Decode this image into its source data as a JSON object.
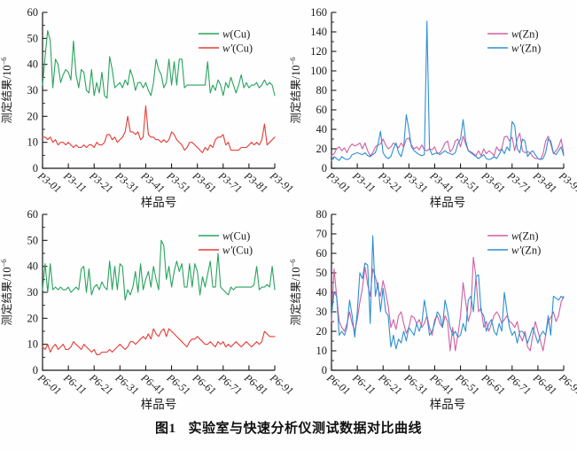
{
  "figure": {
    "caption_prefix": "图1",
    "caption_text": "实验室与快速分析仪测试数据对比曲线"
  },
  "colors": {
    "green": "#29a35e",
    "red": "#e73b34",
    "pink": "#d05fa2",
    "blue": "#2e8fd4",
    "axis": "#1a1a1a"
  },
  "chart_data": [
    {
      "id": "cu-p3",
      "type": "line",
      "title": "",
      "xlabel": "样品号",
      "ylabel_base": "测定结果/10",
      "ylabel_sup": "−6",
      "ylim": [
        0,
        60
      ],
      "ytick_step": 10,
      "grid": false,
      "legend_position": "upper right",
      "x_tick_labels": [
        "P3-01",
        "P3-11",
        "P3-21",
        "P3-31",
        "P3-41",
        "P3-51",
        "P3-61",
        "P3-71",
        "P3-81",
        "P3-91"
      ],
      "legend": [
        {
          "var": "w",
          "rest": "(Cu)",
          "color": "#29a35e"
        },
        {
          "var": "w′",
          "rest": "(Cu)",
          "color": "#e73b34"
        }
      ],
      "series": [
        {
          "name": "w(Cu)",
          "color": "#29a35e",
          "values": [
            32,
            43,
            53,
            49,
            31,
            42,
            40,
            33,
            36,
            38,
            37,
            34,
            49,
            36,
            31,
            38,
            37,
            30,
            29,
            38,
            28,
            33,
            29,
            37,
            28,
            27,
            43,
            38,
            31,
            32,
            33,
            31,
            34,
            32,
            38,
            35,
            30,
            33,
            33,
            31,
            33,
            30,
            28,
            33,
            42,
            38,
            36,
            31,
            33,
            42,
            32,
            41,
            32,
            42,
            42,
            31,
            32,
            32,
            32,
            32,
            32,
            32,
            32,
            32,
            41,
            29,
            32,
            30,
            34,
            32,
            28,
            33,
            31,
            35,
            32,
            29,
            32,
            36,
            31,
            33,
            31,
            32,
            32,
            33,
            31,
            32,
            34,
            32,
            33,
            32,
            28
          ]
        },
        {
          "name": "w′(Cu)",
          "color": "#e73b34",
          "values": [
            12,
            12,
            11,
            12,
            10,
            11,
            9,
            10,
            10,
            9,
            10,
            9,
            8,
            9,
            8,
            8,
            9,
            8,
            9,
            9,
            8,
            10,
            9,
            9,
            10,
            13,
            13,
            11,
            12,
            10,
            11,
            12,
            14,
            20,
            14,
            14,
            13,
            14,
            11,
            12,
            24,
            13,
            12,
            12,
            11,
            11,
            10,
            11,
            10,
            11,
            14,
            13,
            11,
            10,
            9,
            7,
            8,
            10,
            10,
            9,
            8,
            7,
            6,
            8,
            7,
            9,
            8,
            11,
            12,
            12,
            13,
            9,
            10,
            7,
            7,
            7,
            7,
            8,
            8,
            8,
            9,
            10,
            9,
            10,
            9,
            11,
            17,
            9,
            10,
            11,
            12
          ]
        }
      ]
    },
    {
      "id": "zn-p3",
      "type": "line",
      "title": "",
      "xlabel": "样品号",
      "ylabel_base": "测定结果/10",
      "ylabel_sup": "−6",
      "ylim": [
        0,
        160
      ],
      "ytick_step": 20,
      "grid": false,
      "legend_position": "upper right",
      "x_tick_labels": [
        "P3-01",
        "P3-11",
        "P3-21",
        "P3-31",
        "P3-41",
        "P3-51",
        "P3-61",
        "P3-71",
        "P3-81",
        "P3-91"
      ],
      "legend": [
        {
          "var": "w",
          "rest": "(Zn)",
          "color": "#d05fa2"
        },
        {
          "var": "w′",
          "rest": "(Zn)",
          "color": "#2e8fd4"
        }
      ],
      "series": [
        {
          "name": "w(Zn)",
          "color": "#d05fa2",
          "values": [
            13,
            15,
            20,
            22,
            18,
            21,
            16,
            22,
            25,
            23,
            24,
            26,
            20,
            26,
            18,
            13,
            16,
            22,
            24,
            25,
            30,
            24,
            20,
            22,
            26,
            24,
            21,
            26,
            22,
            30,
            31,
            24,
            20,
            22,
            19,
            24,
            19,
            18,
            20,
            19,
            22,
            15,
            16,
            20,
            26,
            28,
            17,
            20,
            28,
            30,
            22,
            33,
            25,
            18,
            17,
            15,
            13,
            18,
            13,
            20,
            15,
            18,
            16,
            13,
            22,
            18,
            20,
            32,
            33,
            28,
            32,
            18,
            30,
            36,
            18,
            16,
            17,
            16,
            12,
            10,
            10,
            9,
            15,
            28,
            33,
            25,
            15,
            18,
            22,
            30,
            15
          ]
        },
        {
          "name": "w′(Zn)",
          "color": "#2e8fd4",
          "values": [
            8,
            12,
            10,
            8,
            12,
            10,
            9,
            10,
            14,
            15,
            16,
            15,
            14,
            16,
            13,
            12,
            14,
            16,
            24,
            38,
            16,
            12,
            10,
            12,
            20,
            26,
            16,
            12,
            22,
            55,
            40,
            22,
            18,
            16,
            14,
            13,
            14,
            151,
            20,
            14,
            15,
            16,
            14,
            16,
            18,
            16,
            15,
            14,
            16,
            25,
            30,
            50,
            28,
            18,
            16,
            14,
            12,
            10,
            12,
            14,
            10,
            9,
            10,
            12,
            10,
            14,
            20,
            15,
            22,
            18,
            48,
            44,
            20,
            16,
            30,
            28,
            12,
            16,
            18,
            14,
            10,
            9,
            10,
            16,
            30,
            28,
            16,
            14,
            18,
            22,
            13
          ]
        }
      ]
    },
    {
      "id": "cu-p6",
      "type": "line",
      "title": "",
      "xlabel": "样品号",
      "ylabel_base": "测定结果/10",
      "ylabel_sup": "−6",
      "ylim": [
        0,
        60
      ],
      "ytick_step": 10,
      "grid": false,
      "legend_position": "upper right",
      "x_tick_labels": [
        "P6-01",
        "P6-11",
        "P6-21",
        "P6-31",
        "P6-41",
        "P6-51",
        "P6-61",
        "P6-71",
        "P6-81",
        "P6-91"
      ],
      "legend": [
        {
          "var": "w",
          "rest": "(Cu)",
          "color": "#29a35e"
        },
        {
          "var": "w′",
          "rest": "(Cu)",
          "color": "#e73b34"
        }
      ],
      "series": [
        {
          "name": "w(Cu)",
          "color": "#29a35e",
          "values": [
            31,
            41,
            30,
            41,
            31,
            32,
            31,
            32,
            31,
            31,
            32,
            30,
            31,
            32,
            31,
            39,
            40,
            30,
            39,
            29,
            32,
            33,
            31,
            34,
            32,
            31,
            42,
            31,
            40,
            31,
            41,
            40,
            27,
            31,
            29,
            32,
            38,
            30,
            41,
            31,
            35,
            38,
            32,
            40,
            35,
            31,
            50,
            48,
            35,
            40,
            32,
            38,
            42,
            38,
            41,
            32,
            32,
            41,
            32,
            41,
            38,
            29,
            36,
            32,
            37,
            42,
            32,
            32,
            45,
            32,
            31,
            30,
            29,
            32,
            31,
            32,
            32,
            32,
            32,
            32,
            32,
            32,
            33,
            40,
            31,
            32,
            32,
            33,
            32,
            40,
            31
          ]
        },
        {
          "name": "w′(Cu)",
          "color": "#e73b34",
          "values": [
            9,
            8,
            10,
            7,
            9,
            10,
            8,
            9,
            10,
            8,
            8,
            9,
            11,
            10,
            9,
            8,
            10,
            9,
            8,
            7,
            8,
            6,
            6,
            7,
            7,
            7,
            8,
            7,
            8,
            9,
            10,
            9,
            8,
            9,
            11,
            11,
            10,
            11,
            12,
            13,
            12,
            14,
            12,
            16,
            14,
            13,
            15,
            16,
            13,
            16,
            15,
            14,
            13,
            12,
            11,
            10,
            9,
            11,
            12,
            12,
            13,
            12,
            11,
            10,
            10,
            11,
            10,
            9,
            11,
            10,
            11,
            9,
            10,
            9,
            10,
            11,
            10,
            9,
            10,
            11,
            10,
            9,
            10,
            11,
            10,
            11,
            15,
            14,
            13,
            13,
            13
          ]
        }
      ]
    },
    {
      "id": "zn-p6",
      "type": "line",
      "title": "",
      "xlabel": "样品号",
      "ylabel_base": "测定结果/10",
      "ylabel_sup": "−6",
      "ylim": [
        0,
        80
      ],
      "ytick_step": 10,
      "grid": false,
      "legend_position": "upper right",
      "x_tick_labels": [
        "P6-01",
        "P6-11",
        "P6-21",
        "P6-31",
        "P6-41",
        "P6-51",
        "P6-61",
        "P6-71",
        "P6-81",
        "P6-91"
      ],
      "legend": [
        {
          "var": "w",
          "rest": "(Zn)",
          "color": "#d05fa2"
        },
        {
          "var": "w′",
          "rest": "(Zn)",
          "color": "#2e8fd4"
        }
      ],
      "series": [
        {
          "name": "w(Zn)",
          "color": "#d05fa2",
          "values": [
            25,
            52,
            38,
            25,
            22,
            20,
            24,
            30,
            24,
            20,
            26,
            35,
            42,
            53,
            44,
            38,
            52,
            48,
            42,
            38,
            46,
            40,
            33,
            22,
            26,
            21,
            28,
            30,
            24,
            19,
            22,
            28,
            27,
            24,
            26,
            22,
            24,
            28,
            22,
            18,
            26,
            28,
            24,
            22,
            28,
            25,
            10,
            22,
            10,
            18,
            28,
            45,
            35,
            25,
            30,
            58,
            48,
            30,
            32,
            22,
            25,
            20,
            24,
            28,
            30,
            28,
            24,
            26,
            28,
            25,
            24,
            22,
            25,
            18,
            15,
            20,
            12,
            10,
            18,
            25,
            20,
            15,
            10,
            18,
            25,
            27,
            30,
            25,
            28,
            35,
            38
          ]
        },
        {
          "name": "w′(Zn)",
          "color": "#2e8fd4",
          "values": [
            28,
            40,
            38,
            18,
            20,
            18,
            22,
            36,
            28,
            17,
            30,
            50,
            47,
            55,
            54,
            24,
            69,
            38,
            45,
            30,
            42,
            30,
            28,
            12,
            18,
            11,
            16,
            14,
            20,
            15,
            22,
            20,
            18,
            24,
            20,
            24,
            36,
            28,
            18,
            20,
            24,
            30,
            28,
            22,
            36,
            30,
            22,
            18,
            20,
            17,
            18,
            24,
            20,
            36,
            38,
            30,
            48,
            49,
            30,
            28,
            20,
            24,
            26,
            20,
            18,
            24,
            20,
            40,
            30,
            22,
            18,
            20,
            14,
            20,
            20,
            18,
            14,
            18,
            22,
            18,
            14,
            18,
            20,
            18,
            28,
            18,
            38,
            37,
            36,
            38,
            37
          ]
        }
      ]
    }
  ]
}
